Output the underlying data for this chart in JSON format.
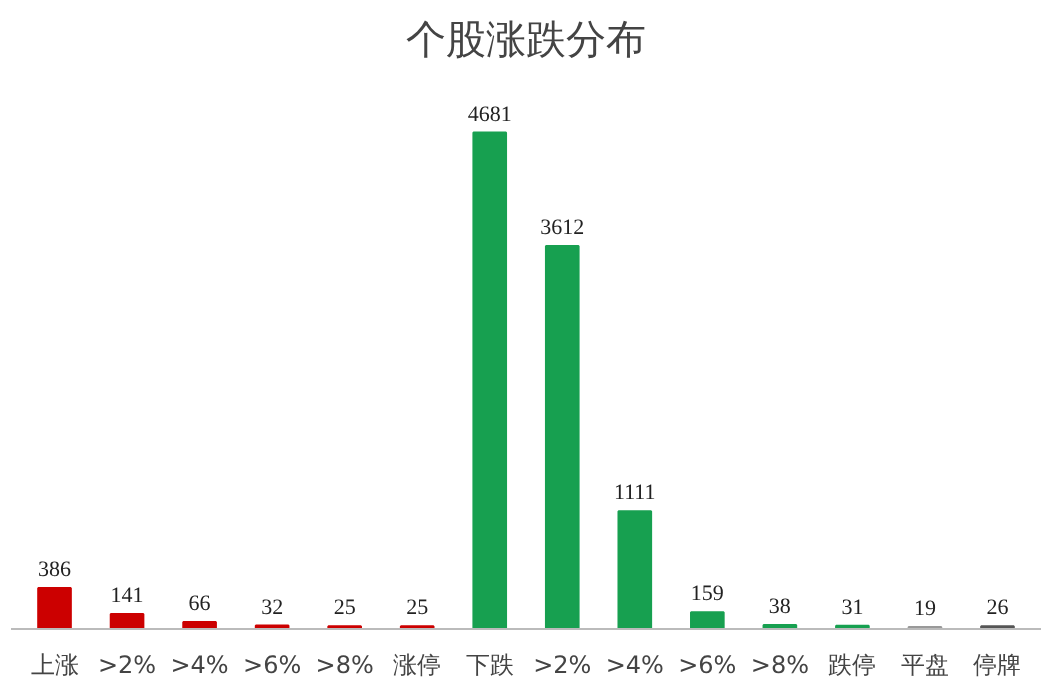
{
  "chart_data": {
    "type": "bar",
    "title": "个股涨跌分布",
    "categories": [
      "上涨",
      ">2%",
      ">4%",
      ">6%",
      ">8%",
      "涨停",
      "下跌",
      ">2%",
      ">4%",
      ">6%",
      ">8%",
      "跌停",
      "平盘",
      "停牌"
    ],
    "values": [
      386,
      141,
      66,
      32,
      25,
      25,
      4681,
      3612,
      1111,
      159,
      38,
      31,
      19,
      26
    ],
    "colors": [
      "#cc0000",
      "#cc0000",
      "#cc0000",
      "#cc0000",
      "#cc0000",
      "#cc0000",
      "#17a050",
      "#17a050",
      "#17a050",
      "#17a050",
      "#17a050",
      "#17a050",
      "#999999",
      "#555555"
    ],
    "data_labels": true,
    "grid": false
  }
}
